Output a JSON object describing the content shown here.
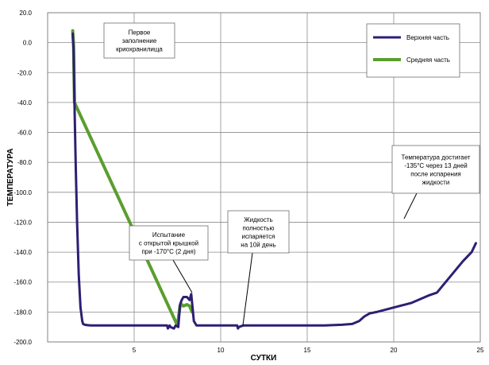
{
  "chart_data": {
    "type": "line",
    "xlabel": "СУТКИ",
    "ylabel": "ТЕМПЕРАТУРА",
    "xlim": [
      0,
      25
    ],
    "ylim": [
      -200,
      20
    ],
    "x_ticks": [
      5,
      10,
      15,
      20,
      25
    ],
    "y_ticks": [
      20,
      0,
      -20,
      -40,
      -60,
      -80,
      -100,
      -120,
      -140,
      -160,
      -180,
      -200
    ],
    "y_tick_labels": [
      "20.0",
      "0.0",
      "-20.0",
      "-40.0",
      "-60.0",
      "-80.0",
      "-100.0",
      "-120.0",
      "-140.0",
      "-160.0",
      "-180.0",
      "-200.0"
    ],
    "x_tick_labels": [
      "5",
      "10",
      "15",
      "20",
      "25"
    ],
    "grid": true,
    "legend_placement": "top-right",
    "series": [
      {
        "name": "Верхняя часть",
        "color": "#2e1f73",
        "x": [
          1.45,
          1.5,
          1.55,
          1.62,
          1.7,
          1.8,
          1.9,
          2.0,
          2.05,
          2.15,
          2.3,
          2.5,
          3.0,
          4.0,
          5.0,
          6.0,
          6.9,
          6.95,
          7.05,
          7.1,
          7.3,
          7.4,
          7.55,
          7.65,
          7.75,
          7.85,
          8.05,
          8.2,
          8.3,
          8.35,
          8.45,
          8.6,
          8.8,
          9.0,
          10.0,
          10.95,
          11.0,
          11.05,
          11.3,
          11.5,
          12.0,
          13.0,
          14.0,
          15.0,
          16.0,
          17.0,
          17.6,
          18.0,
          18.3,
          18.6,
          19.0,
          20.0,
          21.0,
          22.0,
          22.5,
          23.0,
          23.5,
          24.0,
          24.5,
          24.75
        ],
        "y": [
          6,
          -5,
          -40,
          -80,
          -120,
          -155,
          -177,
          -186,
          -188,
          -188.5,
          -188.8,
          -189,
          -189,
          -189,
          -189,
          -189,
          -189,
          -191,
          -189,
          -190,
          -191,
          -189,
          -190,
          -175,
          -172,
          -170,
          -170,
          -172,
          -168,
          -174,
          -186,
          -189,
          -189,
          -189,
          -189,
          -189,
          -191,
          -190,
          -189,
          -189,
          -189,
          -189,
          -189,
          -189,
          -189,
          -188.5,
          -188,
          -186,
          -183,
          -181,
          -180,
          -177,
          -174,
          -169,
          -167,
          -160,
          -153,
          -146,
          -140,
          -134
        ]
      },
      {
        "name": "Средняя часть",
        "color": "#5a9e2f",
        "x": [
          1.45,
          1.5,
          1.55,
          7.5,
          7.65,
          7.75,
          7.85,
          8.05,
          8.2,
          8.35
        ],
        "y": [
          8,
          -2,
          -40,
          -189,
          -176,
          -175,
          -176,
          -175,
          -176,
          -180
        ]
      }
    ],
    "annotations": [
      {
        "lines": [
          "Первое",
          "заполнение",
          "криохранилища"
        ]
      },
      {
        "lines": [
          "Испытание",
          "с открытой крышкой",
          "при -170°С (2 дня)"
        ]
      },
      {
        "lines": [
          "Жидкость",
          "полностью",
          "испаряется",
          "на 10й день"
        ]
      },
      {
        "lines": [
          "Температура достигает",
          "-135°С через 13 дней",
          "после испарения",
          "жидкости"
        ]
      }
    ]
  }
}
